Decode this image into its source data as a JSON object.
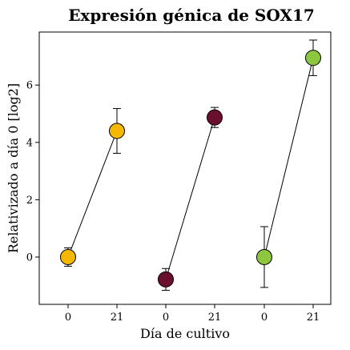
{
  "chart_data": {
    "type": "scatter",
    "title": "Expresión génica de SOX17",
    "xlabel": "Día de cultivo",
    "ylabel": "Relativizado a día 0 [log2]",
    "categories": [
      "0",
      "21",
      "0",
      "21",
      "0",
      "21"
    ],
    "ylim": [
      -1.65,
      7.85
    ],
    "yticks": [
      0,
      2,
      4,
      6
    ],
    "grid": false,
    "legend": "none",
    "series": [
      {
        "color": "#F5B800",
        "points": [
          {
            "x": "0",
            "y": 0.0,
            "err": 0.32
          },
          {
            "x": "21",
            "y": 4.4,
            "err": 0.78
          }
        ]
      },
      {
        "color": "#6B0F2E",
        "points": [
          {
            "x": "0",
            "y": -0.78,
            "err": 0.38
          },
          {
            "x": "21",
            "y": 4.87,
            "err": 0.35
          }
        ]
      },
      {
        "color": "#8DC63F",
        "points": [
          {
            "x": "0",
            "y": 0.0,
            "err": 1.06
          },
          {
            "x": "21",
            "y": 6.95,
            "err": 0.62
          }
        ]
      }
    ]
  }
}
